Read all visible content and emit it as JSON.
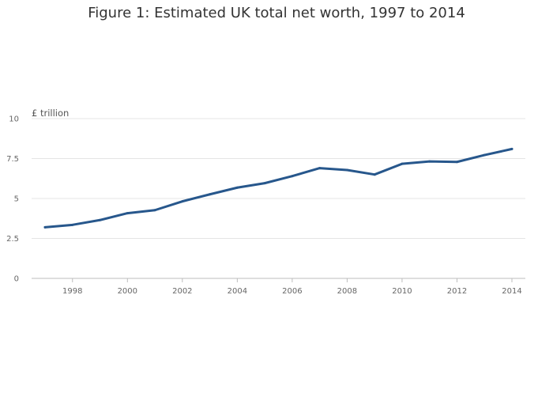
{
  "chart_data": {
    "type": "line",
    "title": "Figure 1: Estimated UK total net worth, 1997 to 2014",
    "ylabel": "£ trillion",
    "xlabel": "",
    "ylim": [
      0,
      10
    ],
    "xlim": [
      1997,
      2014
    ],
    "y_ticks": [
      0,
      2.5,
      5,
      7.5,
      10
    ],
    "y_tick_labels": [
      "0",
      "2.5",
      "5",
      "7.5",
      "10"
    ],
    "x_ticks": [
      1998,
      2000,
      2002,
      2004,
      2006,
      2008,
      2010,
      2012,
      2014
    ],
    "x_tick_labels": [
      "1998",
      "2000",
      "2002",
      "2004",
      "2006",
      "2008",
      "2010",
      "2012",
      "2014"
    ],
    "grid": true,
    "series": [
      {
        "color": "#27578c",
        "x": [
          1997,
          1998,
          1999,
          2000,
          2001,
          2002,
          2003,
          2004,
          2005,
          2006,
          2007,
          2008,
          2009,
          2010,
          2011,
          2012,
          2013,
          2014
        ],
        "values": [
          3.2,
          3.35,
          3.65,
          4.08,
          4.27,
          4.82,
          5.26,
          5.68,
          5.96,
          6.4,
          6.9,
          6.78,
          6.5,
          7.17,
          7.32,
          7.29,
          7.72,
          8.1
        ]
      }
    ]
  }
}
